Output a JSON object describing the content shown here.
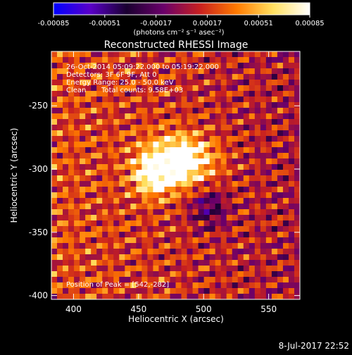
{
  "colorbar": {
    "ticks": [
      "-0.00085",
      "-0.00051",
      "-0.00017",
      "0.00017",
      "0.00051",
      "0.00085"
    ],
    "min": -0.00085,
    "max": 0.00085,
    "unit_label": "(photons cm⁻² s⁻¹ asec⁻²)",
    "colors": [
      "#0000ff",
      "#5a00c8",
      "#1a0030",
      "#6a006a",
      "#c82020",
      "#ff7a00",
      "#ffe060",
      "#ffffff"
    ]
  },
  "chart_data": {
    "type": "heatmap",
    "title": "Reconstructed RHESSI Image",
    "xlabel": "Heliocentric X (arcsec)",
    "ylabel": "Heliocentric Y (arcsec)",
    "xlim": [
      383,
      574
    ],
    "ylim": [
      -403,
      -207
    ],
    "xticks": [
      400,
      450,
      500,
      550
    ],
    "yticks": [
      -250,
      -300,
      -350,
      -400
    ],
    "peak": {
      "x": 542,
      "y": -282
    },
    "annotations": {
      "time": "26-Oct-2014 05:09:22.000 to 05:19:22.000",
      "detectors": "Detectors: 3F 6F 9F, Att 0",
      "energy": "Energy Range: 25.0 - 50.0 keV",
      "method": "Clean",
      "total_counts": "Total counts: 9.58E+03",
      "peak_label": "Position of Peak = [542,-282]"
    }
  },
  "footer": {
    "timestamp": "8-Jul-2017 22:52"
  }
}
